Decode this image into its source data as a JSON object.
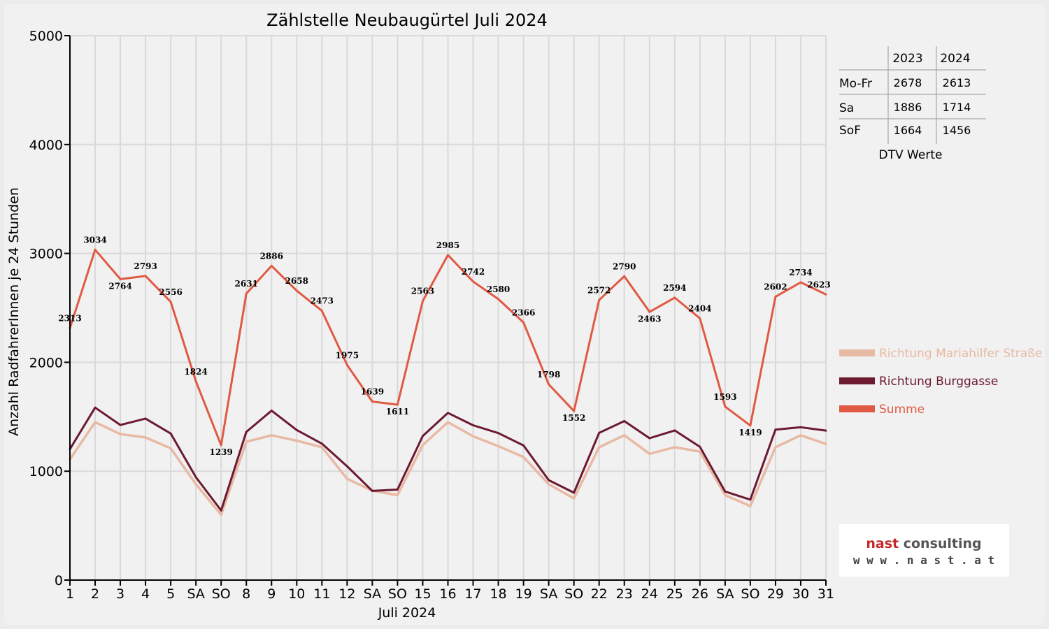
{
  "chart_data": {
    "type": "line",
    "title": "Zählstelle Neubaugürtel Juli 2024",
    "xlabel": "Juli 2024",
    "ylabel": "Anzahl RadfahrerInnen je 24 Stunden",
    "ylim": [
      0,
      5000
    ],
    "yticks": [
      0,
      1000,
      2000,
      3000,
      4000,
      5000
    ],
    "grid": true,
    "legend_position": "right",
    "categories": [
      "1",
      "2",
      "3",
      "4",
      "5",
      "SA",
      "SO",
      "8",
      "9",
      "10",
      "11",
      "12",
      "SA",
      "SO",
      "15",
      "16",
      "17",
      "18",
      "19",
      "SA",
      "SO",
      "22",
      "23",
      "24",
      "25",
      "26",
      "SA",
      "SO",
      "29",
      "30",
      "31"
    ],
    "weekend_sunday_color": "#e00000",
    "series": [
      {
        "name": "Richtung Mariahilfer Straße",
        "color": "#e8b9a4",
        "values": [
          1110,
          1450,
          1340,
          1310,
          1210,
          880,
          600,
          1270,
          1330,
          1280,
          1220,
          930,
          820,
          780,
          1240,
          1450,
          1320,
          1230,
          1130,
          880,
          750,
          1220,
          1330,
          1160,
          1220,
          1180,
          780,
          680,
          1220,
          1330,
          1250
        ]
      },
      {
        "name": "Richtung Burggasse",
        "color": "#6b1a30",
        "values": [
          1203,
          1584,
          1424,
          1483,
          1346,
          944,
          639,
          1361,
          1556,
          1378,
          1253,
          1045,
          819,
          831,
          1323,
          1535,
          1422,
          1350,
          1236,
          918,
          802,
          1352,
          1460,
          1303,
          1374,
          1224,
          813,
          739,
          1382,
          1404,
          1373
        ]
      },
      {
        "name": "Summe",
        "color": "#e05a43",
        "values": [
          2313,
          3034,
          2764,
          2793,
          2556,
          1824,
          1239,
          2631,
          2886,
          2658,
          2473,
          1975,
          1639,
          1611,
          2563,
          2985,
          2742,
          2580,
          2366,
          1798,
          1552,
          2572,
          2790,
          2463,
          2594,
          2404,
          1593,
          1419,
          2602,
          2734,
          2623
        ]
      }
    ]
  },
  "dtv_table": {
    "caption": "DTV Werte",
    "years": [
      "2023",
      "2024"
    ],
    "rows": [
      {
        "label": "Mo-Fr",
        "v2023": "2678",
        "v2024": "2613"
      },
      {
        "label": "Sa",
        "v2023": "1886",
        "v2024": "1714"
      },
      {
        "label": "SoF",
        "v2023": "1664",
        "v2024": "1456"
      }
    ]
  },
  "logo": {
    "main_part1": "nast",
    "main_part2": " consulting",
    "sub": "w w w . n a s t . a t",
    "color_part1": "#c62828",
    "color_part2": "#555555"
  }
}
